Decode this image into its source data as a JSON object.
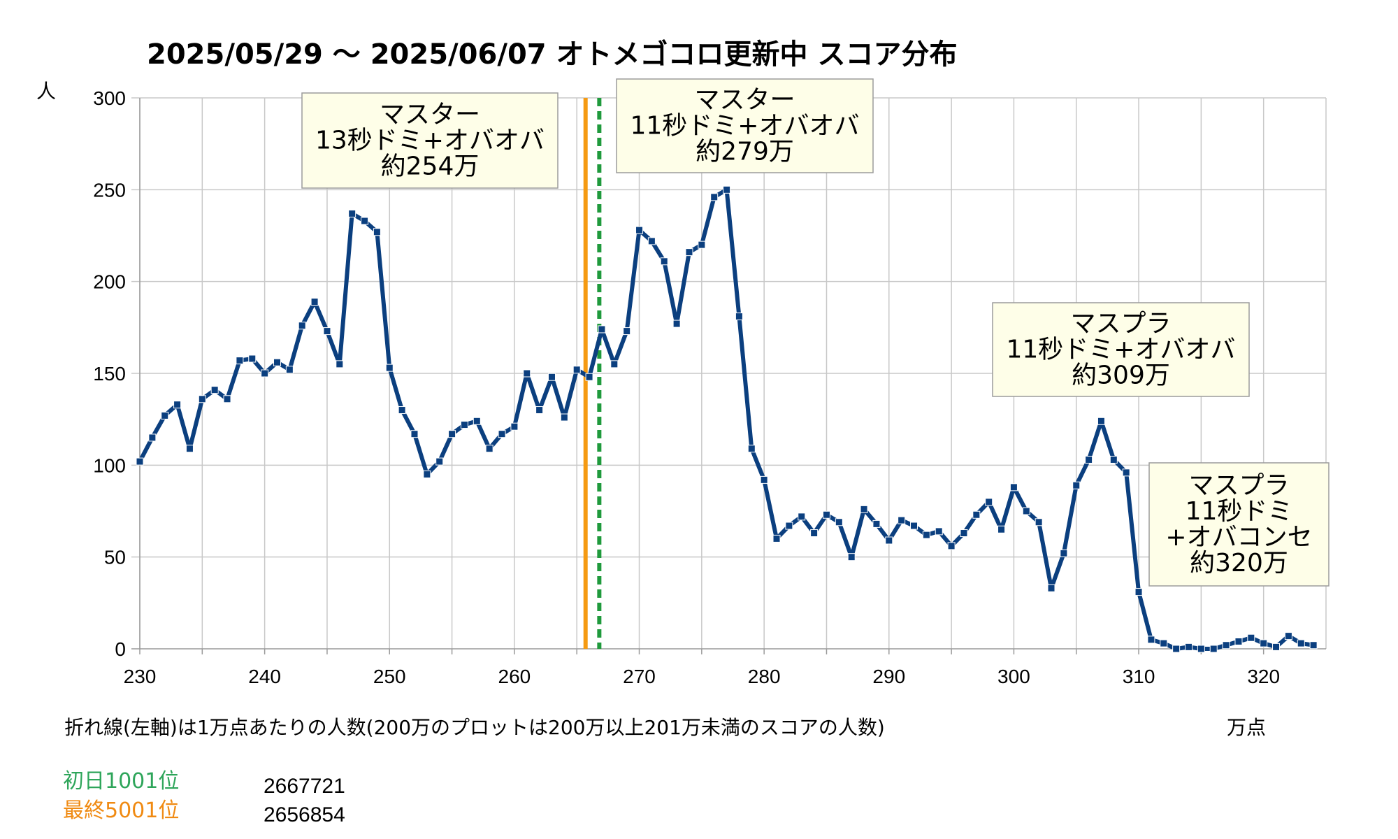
{
  "chart_data": {
    "type": "line",
    "title": "2025/05/29 〜 2025/06/07 オトメゴコロ更新中 スコア分布",
    "ylabel": "人",
    "xlabel": "万点",
    "xlim": [
      230,
      325
    ],
    "ylim": [
      0,
      300
    ],
    "x_ticks": [
      230,
      240,
      250,
      260,
      270,
      280,
      290,
      300,
      310,
      320
    ],
    "y_ticks": [
      0,
      50,
      100,
      150,
      200,
      250,
      300
    ],
    "grid": true,
    "series": [
      {
        "color": "#0b3f7f",
        "x": [
          230,
          231,
          232,
          233,
          234,
          235,
          236,
          237,
          238,
          239,
          240,
          241,
          242,
          243,
          244,
          245,
          246,
          247,
          248,
          249,
          250,
          251,
          252,
          253,
          254,
          255,
          256,
          257,
          258,
          259,
          260,
          261,
          262,
          263,
          264,
          265,
          266,
          267,
          268,
          269,
          270,
          271,
          272,
          273,
          274,
          275,
          276,
          277,
          278,
          279,
          280,
          281,
          282,
          283,
          284,
          285,
          286,
          287,
          288,
          289,
          290,
          291,
          292,
          293,
          294,
          295,
          296,
          297,
          298,
          299,
          300,
          301,
          302,
          303,
          304,
          305,
          306,
          307,
          308,
          309,
          310,
          311,
          312,
          313,
          314,
          315,
          316,
          317,
          318,
          319,
          320,
          321,
          322,
          323,
          324
        ],
        "y": [
          102,
          115,
          127,
          133,
          109,
          136,
          141,
          136,
          157,
          158,
          150,
          156,
          152,
          176,
          189,
          173,
          155,
          237,
          233,
          227,
          153,
          130,
          117,
          95,
          102,
          117,
          122,
          124,
          109,
          117,
          121,
          150,
          130,
          148,
          126,
          152,
          148,
          174,
          155,
          173,
          228,
          222,
          211,
          177,
          216,
          220,
          246,
          250,
          181,
          109,
          92,
          60,
          67,
          72,
          63,
          73,
          69,
          50,
          76,
          68,
          59,
          70,
          67,
          62,
          64,
          56,
          63,
          73,
          80,
          65,
          88,
          75,
          69,
          33,
          52,
          89,
          103,
          124,
          103,
          96,
          31,
          5,
          3,
          0,
          1,
          0,
          0,
          2,
          4,
          6,
          3,
          1,
          7,
          3,
          2
        ]
      }
    ],
    "vlines": [
      {
        "x": 265.7,
        "color": "#f59a12",
        "style": "solid"
      },
      {
        "x": 266.8,
        "color": "#1f9a3c",
        "style": "dashed"
      }
    ],
    "annotations": [
      {
        "lines": [
          "マスター",
          "13秒ドミ+オバオバ",
          "約254万"
        ]
      },
      {
        "lines": [
          "マスター",
          "11秒ドミ+オバオバ",
          "約279万"
        ]
      },
      {
        "lines": [
          "マスプラ",
          "11秒ドミ+オバオバ",
          "約309万"
        ]
      },
      {
        "lines": [
          "マスプラ",
          "11秒ドミ",
          "+オバコンセ",
          "約320万"
        ]
      }
    ],
    "note": "折れ線(左軸)は1万点あたりの人数(200万のプロットは200万以上201万未満のスコアの人数)"
  },
  "ranks": [
    {
      "label": "初日1001位",
      "value": "2667721",
      "color": "#2ea55a"
    },
    {
      "label": "最終5001位",
      "value": "2656854",
      "color": "#f08a12"
    }
  ]
}
